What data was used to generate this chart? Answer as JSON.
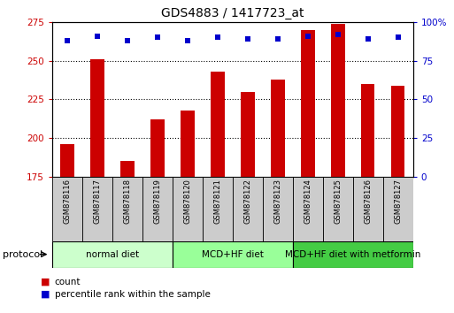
{
  "title": "GDS4883 / 1417723_at",
  "samples": [
    "GSM878116",
    "GSM878117",
    "GSM878118",
    "GSM878119",
    "GSM878120",
    "GSM878121",
    "GSM878122",
    "GSM878123",
    "GSM878124",
    "GSM878125",
    "GSM878126",
    "GSM878127"
  ],
  "counts": [
    196,
    251,
    185,
    212,
    218,
    243,
    230,
    238,
    270,
    274,
    235,
    234
  ],
  "percentile_ranks": [
    88,
    91,
    88,
    90,
    88,
    90,
    89,
    89,
    91,
    92,
    89,
    90
  ],
  "bar_color": "#cc0000",
  "dot_color": "#0000cc",
  "ylim_left": [
    175,
    275
  ],
  "ylim_right": [
    0,
    100
  ],
  "yticks_left": [
    175,
    200,
    225,
    250,
    275
  ],
  "yticks_right": [
    0,
    25,
    50,
    75,
    100
  ],
  "ytick_labels_right": [
    "0",
    "25",
    "50",
    "75",
    "100%"
  ],
  "grid_lines": [
    200,
    225,
    250
  ],
  "groups": [
    {
      "label": "normal diet",
      "start": 0,
      "end": 4,
      "color": "#ccffcc"
    },
    {
      "label": "MCD+HF diet",
      "start": 4,
      "end": 8,
      "color": "#99ff99"
    },
    {
      "label": "MCD+HF diet with metformin",
      "start": 8,
      "end": 12,
      "color": "#44cc44"
    }
  ],
  "protocol_label": "protocol",
  "legend_count_label": "count",
  "legend_pct_label": "percentile rank within the sample",
  "background_color": "#ffffff",
  "sample_box_color": "#cccccc",
  "tick_label_color_left": "#cc0000",
  "tick_label_color_right": "#0000cc",
  "title_fontsize": 10,
  "axis_fontsize": 7.5,
  "sample_fontsize": 6,
  "group_fontsize": 7.5,
  "legend_fontsize": 7.5
}
